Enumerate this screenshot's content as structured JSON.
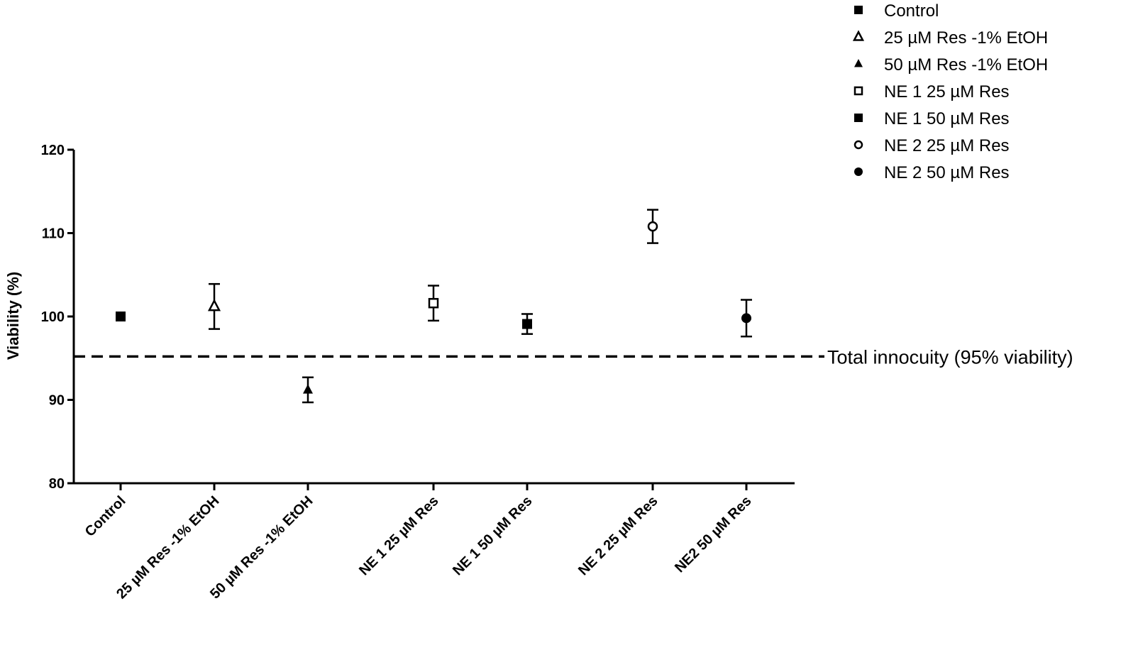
{
  "chart_data": {
    "type": "scatter",
    "title": "",
    "ylabel": "Viability (%)",
    "xlabel": "",
    "ylim": [
      80,
      120
    ],
    "yticks": [
      80,
      90,
      100,
      110,
      120
    ],
    "grid": false,
    "legend_position": "top-right",
    "categories": [
      "Control",
      "25 µM Res -1% EtOH",
      "50 µM Res -1% EtOH",
      "NE 1 25 µM Res",
      "NE 1 50 µM Res",
      "NE 2 25 µM Res",
      "NE2 50 µM Res"
    ],
    "series": [
      {
        "name": "Control",
        "marker": "filled-square",
        "value": 100.0,
        "error": 0.0
      },
      {
        "name": "25 µM Res -1% EtOH",
        "marker": "open-triangle",
        "value": 101.2,
        "error": 2.7
      },
      {
        "name": "50 µM Res -1% EtOH",
        "marker": "filled-triangle",
        "value": 91.2,
        "error": 1.5
      },
      {
        "name": "NE 1 25 µM Res",
        "marker": "open-square",
        "value": 101.6,
        "error": 2.1
      },
      {
        "name": "NE 1 50 µM Res",
        "marker": "filled-square",
        "value": 99.1,
        "error": 1.2
      },
      {
        "name": "NE 2 25 µM Res",
        "marker": "open-circle",
        "value": 110.8,
        "error": 2.0
      },
      {
        "name": "NE 2 50 µM Res",
        "marker": "filled-circle",
        "value": 99.8,
        "error": 2.2
      }
    ],
    "reference_line": {
      "value": 95.2,
      "label": "Total innocuity (95% viability)",
      "style": "dashed"
    }
  }
}
